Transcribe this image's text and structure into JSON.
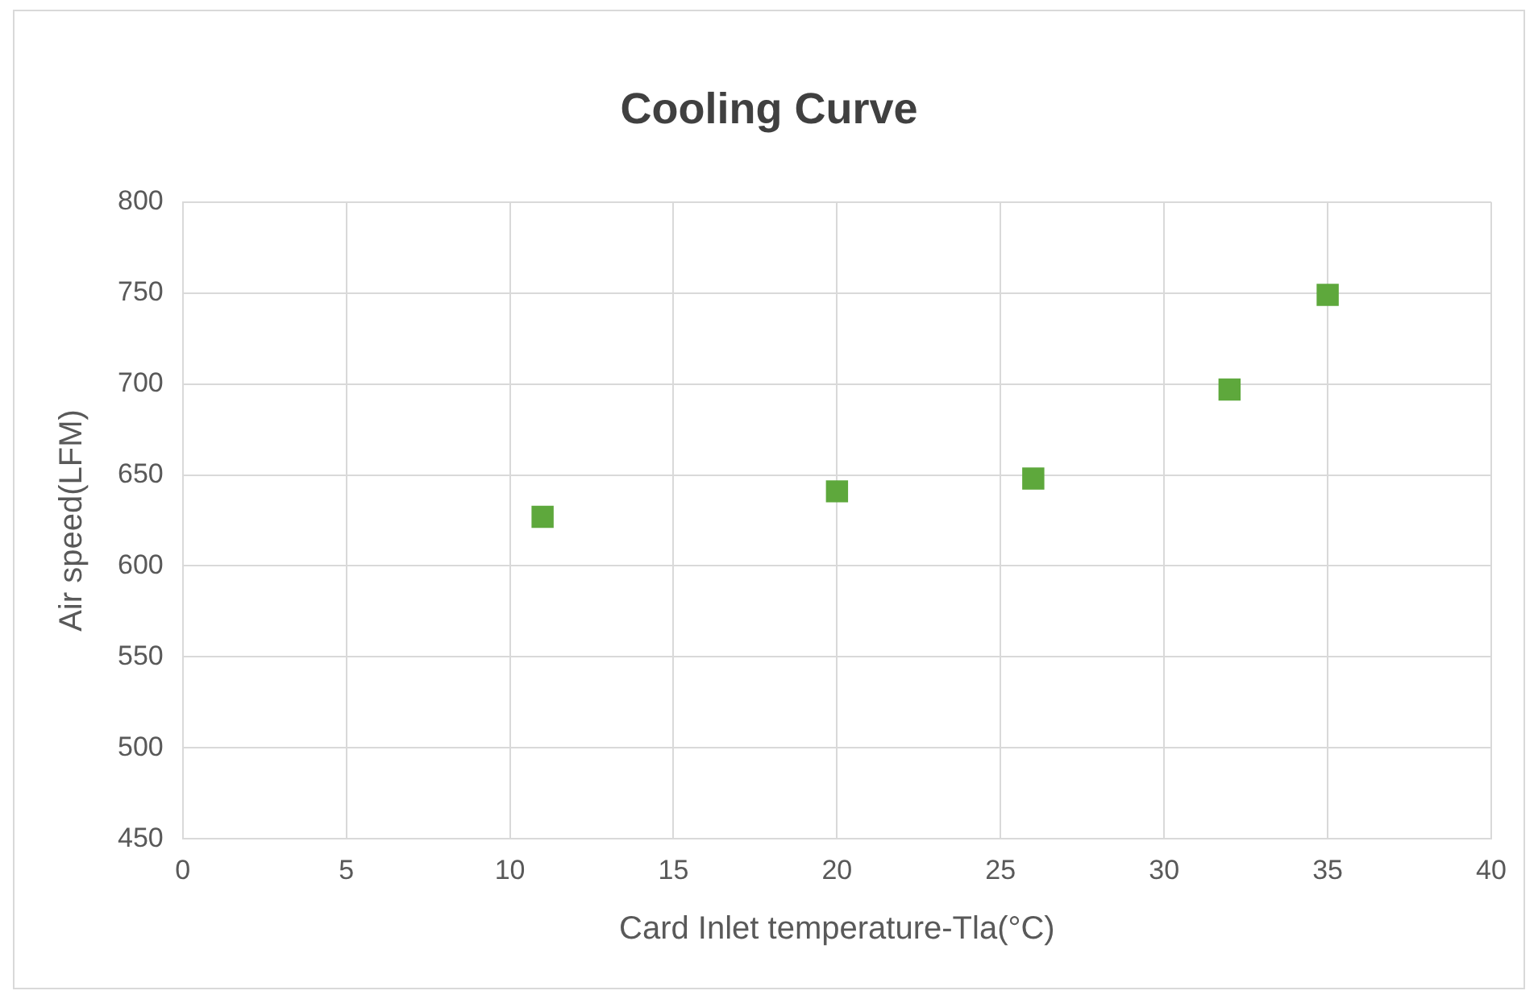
{
  "chart_data": {
    "type": "scatter",
    "title": "Cooling Curve",
    "xlabel": "Card Inlet temperature-Tla(°C)",
    "ylabel": "Air speed(LFM)",
    "x": [
      11,
      20,
      26,
      32,
      35
    ],
    "series": [
      {
        "color": "#5ea83c",
        "values": [
          627,
          641,
          648,
          697,
          749
        ]
      }
    ],
    "xlim": [
      0,
      40
    ],
    "xticks": [
      0,
      5,
      10,
      15,
      20,
      25,
      30,
      35,
      40
    ],
    "ylim": [
      450,
      800
    ],
    "yticks": [
      450,
      500,
      550,
      600,
      650,
      700,
      750,
      800
    ],
    "grid": true,
    "legend": false,
    "marker": "square"
  }
}
